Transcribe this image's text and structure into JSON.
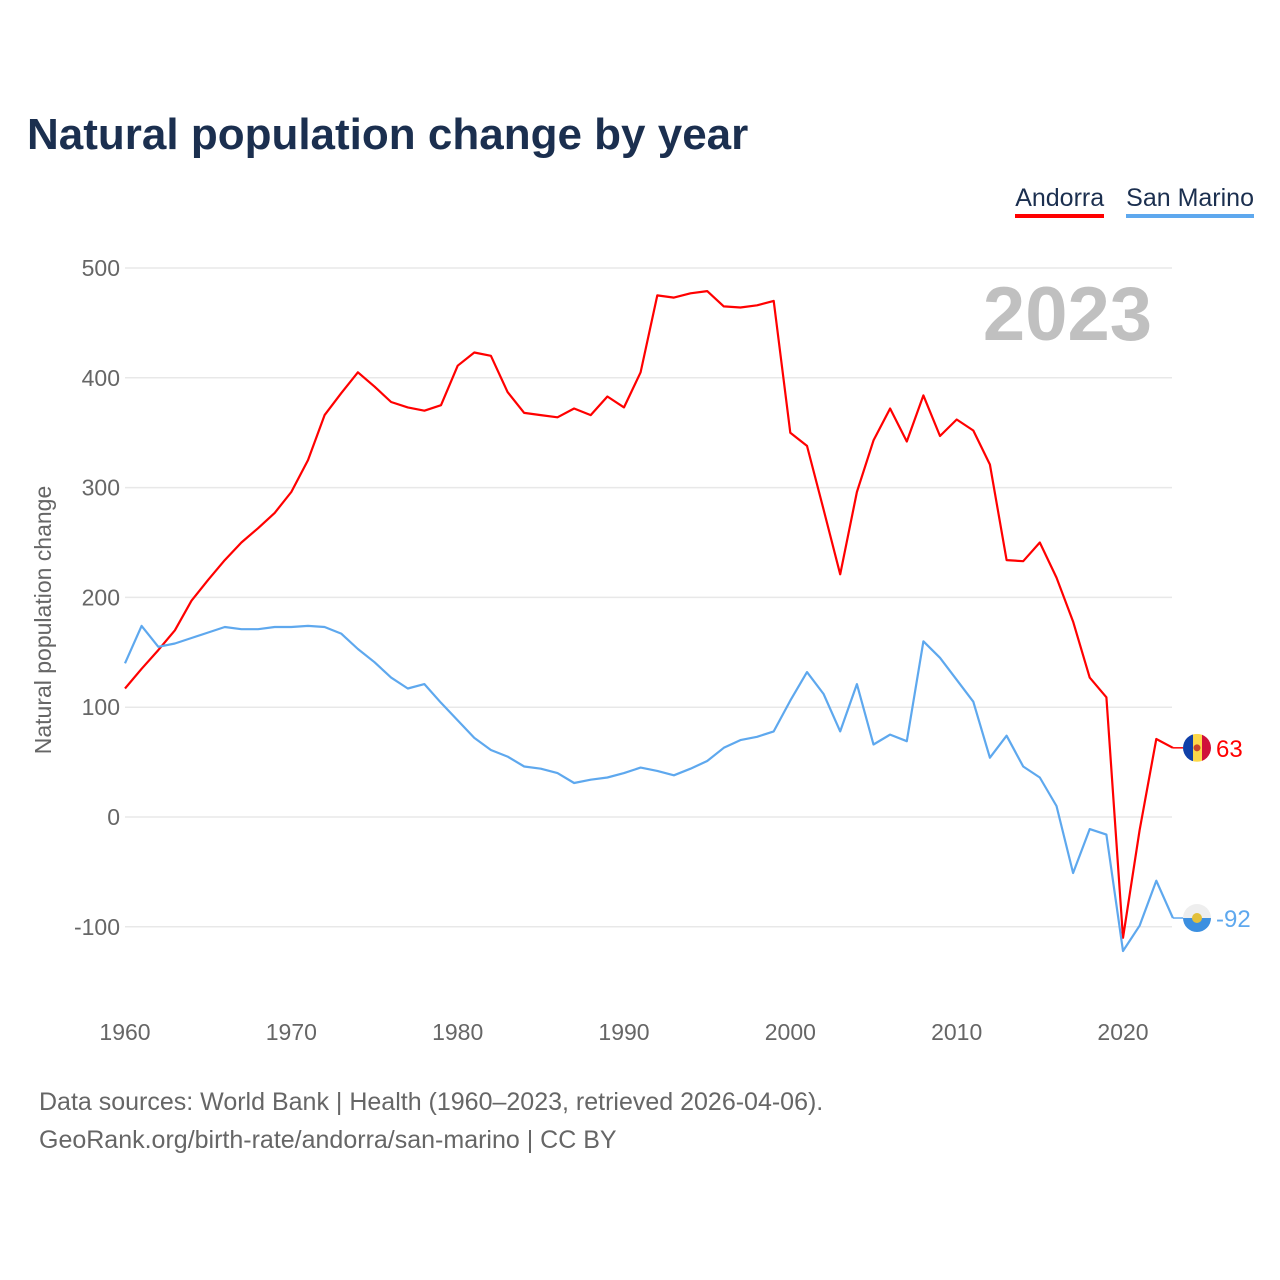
{
  "chart_data": {
    "type": "line",
    "title": "Natural population change by year",
    "xlabel": "",
    "ylabel": "Natural population change",
    "xlim": [
      1960,
      2023
    ],
    "ylim": [
      -150,
      500
    ],
    "yticks": [
      -100,
      0,
      100,
      200,
      300,
      400,
      500
    ],
    "xticks": [
      1960,
      1970,
      1980,
      1990,
      2000,
      2010,
      2020
    ],
    "grid": true,
    "legend_position": "top-right",
    "year_label": "2023",
    "x_start": 1960,
    "series": [
      {
        "name": "Andorra",
        "color": "#ff0000",
        "end_label": "63",
        "values": [
          117,
          135,
          152,
          170,
          197,
          216,
          234,
          250,
          263,
          277,
          296,
          325,
          366,
          386,
          405,
          392,
          378,
          373,
          370,
          375,
          411,
          423,
          420,
          387,
          368,
          366,
          364,
          372,
          366,
          383,
          373,
          405,
          475,
          473,
          477,
          479,
          465,
          464,
          466,
          470,
          350,
          338,
          280,
          221,
          296,
          343,
          372,
          342,
          384,
          347,
          362,
          352,
          321,
          234,
          233,
          250,
          218,
          178,
          127,
          109,
          -110,
          -12,
          71,
          63
        ]
      },
      {
        "name": "San Marino",
        "color": "#5ea8ee",
        "end_label": "-92",
        "values": [
          140,
          174,
          155,
          158,
          163,
          168,
          173,
          171,
          171,
          173,
          173,
          174,
          173,
          167,
          153,
          141,
          127,
          117,
          121,
          104,
          88,
          72,
          61,
          55,
          46,
          44,
          40,
          31,
          34,
          36,
          40,
          45,
          42,
          38,
          44,
          51,
          63,
          70,
          73,
          78,
          106,
          132,
          112,
          78,
          121,
          66,
          75,
          69,
          160,
          145,
          125,
          105,
          54,
          74,
          46,
          36,
          10,
          -51,
          -11,
          -16,
          -122,
          -99,
          -58,
          -92
        ]
      }
    ]
  },
  "footer": {
    "sources": "Data sources: World Bank | Health (1960–2023, retrieved 2026-04-06).",
    "link": "GeoRank.org/birth-rate/andorra/san-marino | CC BY"
  }
}
